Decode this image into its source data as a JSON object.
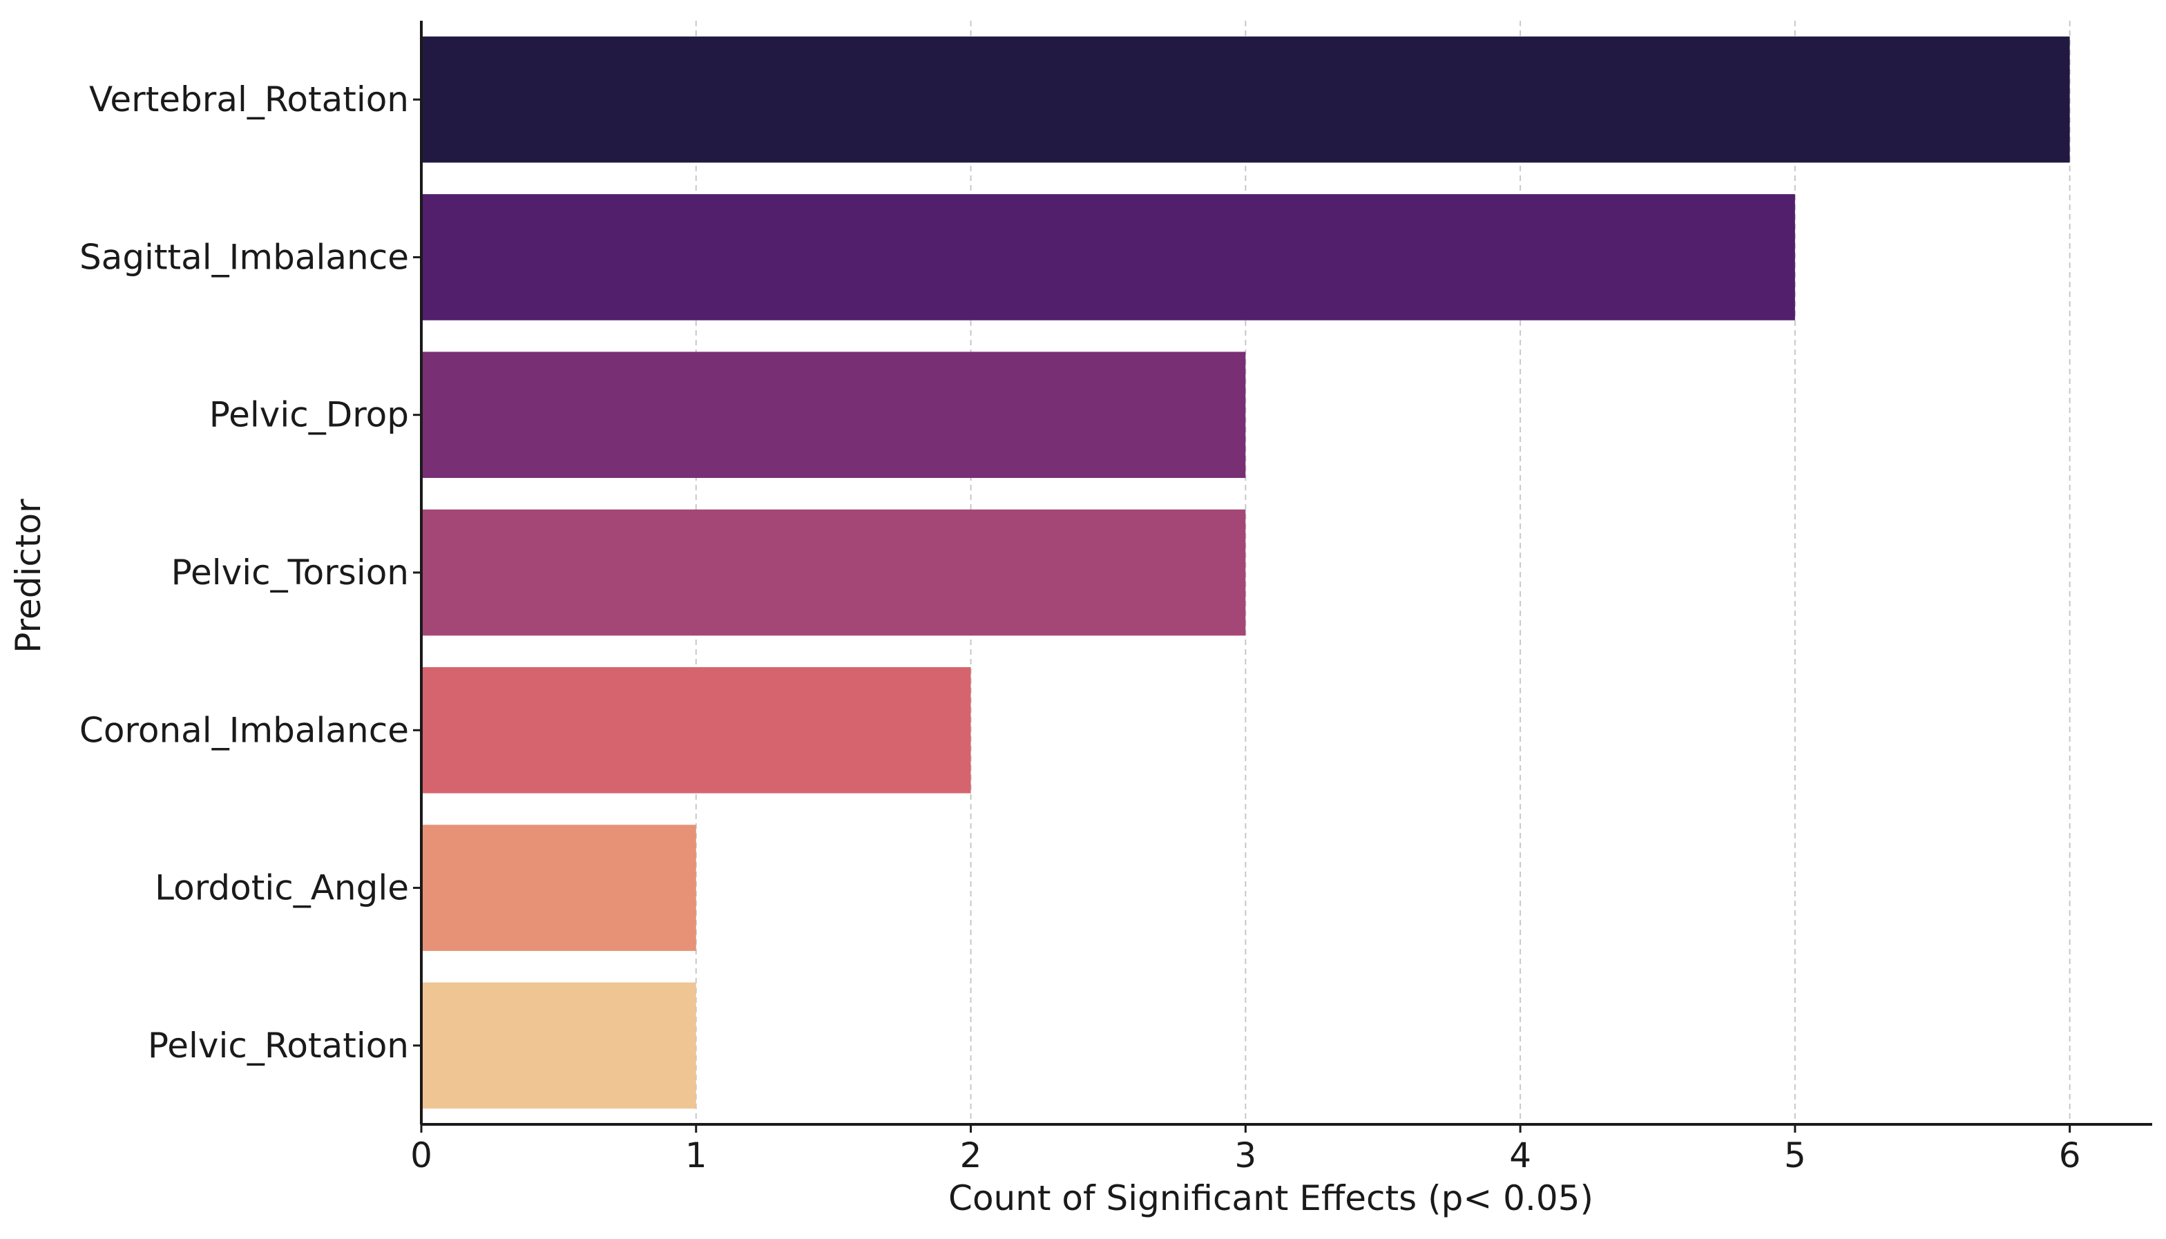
{
  "chart_data": {
    "type": "bar",
    "orientation": "horizontal",
    "title": "",
    "xlabel": "Count of Significant Effects (p< 0.05)",
    "ylabel": "Predictor",
    "categories": [
      "Vertebral_Rotation",
      "Sagittal_Imbalance",
      "Pelvic_Drop",
      "Pelvic_Torsion",
      "Coronal_Imbalance",
      "Lordotic_Angle",
      "Pelvic_Rotation"
    ],
    "values": [
      6,
      5,
      3,
      3,
      2,
      1,
      1
    ],
    "colors": [
      "#221942",
      "#521f6c",
      "#782f73",
      "#a44676",
      "#d5646f",
      "#e79176",
      "#eec593"
    ],
    "xlim": [
      0,
      6.3
    ],
    "xticks": [
      0,
      1,
      2,
      3,
      4,
      5,
      6
    ],
    "grid": "x-dashed",
    "legend": "none"
  }
}
